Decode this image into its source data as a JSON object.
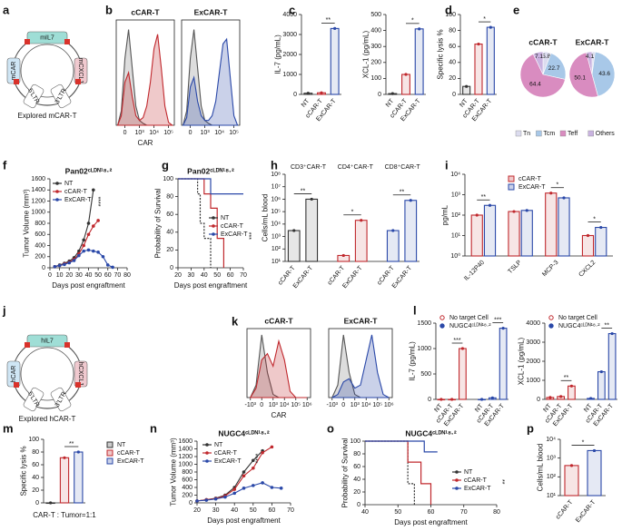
{
  "panel_labels": [
    "a",
    "b",
    "c",
    "d",
    "e",
    "f",
    "g",
    "h",
    "i",
    "j",
    "k",
    "l",
    "m",
    "n",
    "o",
    "p"
  ],
  "plasmids": [
    {
      "title": "Explored mCAR-T",
      "segments": [
        "mIL7",
        "mCAR",
        "mCXCL1",
        "3'LTR",
        "5'LTR"
      ]
    },
    {
      "title": "Explored hCAR-T",
      "segments": [
        "hIL7",
        "hCAR",
        "hCXCL1",
        "3'LTR",
        "5'LTR"
      ]
    }
  ],
  "chart_data": [
    {
      "type": "density",
      "title": "cCAR-T",
      "title_color": "#c0282d",
      "xlabel": "CAR",
      "x": [
        -0.5,
        -0.25,
        0,
        0.25,
        0.5,
        0.75,
        1,
        1.25,
        1.5,
        1.75,
        2,
        2.25,
        2.5,
        2.75,
        3,
        3.25
      ],
      "xlim": [
        -0.6,
        3.4
      ],
      "xticks": [
        {
          "value": 0,
          "label": "0"
        },
        {
          "value": 1,
          "label": "10³"
        },
        {
          "value": 2,
          "label": "10⁴"
        },
        {
          "value": 3,
          "label": "10⁵"
        }
      ],
      "ylim": [
        0,
        110
      ],
      "series": [
        {
          "color": "#555555",
          "values": [
            0,
            15,
            70,
            100,
            60,
            20,
            5,
            2,
            0,
            0,
            0,
            0,
            0,
            0,
            0,
            0
          ]
        },
        {
          "color": "#c0282d",
          "values": [
            0,
            10,
            45,
            55,
            30,
            10,
            5,
            8,
            20,
            45,
            80,
            95,
            60,
            20,
            3,
            0
          ]
        }
      ]
    },
    {
      "type": "density",
      "title": "ExCAR-T",
      "title_color": "#2a48a8",
      "x": [
        -0.5,
        -0.25,
        0,
        0.25,
        0.5,
        0.75,
        1,
        1.25,
        1.5,
        1.75,
        2,
        2.25,
        2.5,
        2.75,
        3,
        3.25
      ],
      "xlim": [
        -0.6,
        3.4
      ],
      "xticks": [
        {
          "value": 0,
          "label": "0"
        },
        {
          "value": 1,
          "label": "10³"
        },
        {
          "value": 2,
          "label": "10⁴"
        },
        {
          "value": 3,
          "label": "10⁵"
        }
      ],
      "ylim": [
        0,
        110
      ],
      "series": [
        {
          "color": "#555555",
          "values": [
            0,
            15,
            70,
            100,
            60,
            20,
            5,
            2,
            0,
            0,
            0,
            0,
            0,
            0,
            0,
            0
          ]
        },
        {
          "color": "#2a48a8",
          "values": [
            0,
            8,
            40,
            50,
            25,
            10,
            5,
            5,
            10,
            25,
            55,
            85,
            90,
            50,
            10,
            0
          ]
        }
      ]
    },
    {
      "type": "bar",
      "ylabel": "IL-7 (pg/mL)",
      "categories": [
        "NT",
        "cCAR-T",
        "ExCAR-T"
      ],
      "values": [
        60,
        80,
        3300
      ],
      "colors": [
        "#333333",
        "#c0282d",
        "#2a48a8"
      ],
      "ylim": [
        0,
        4000
      ],
      "yticks": [
        0,
        1000,
        2000,
        3000,
        4000
      ],
      "significance": [
        "**"
      ]
    },
    {
      "type": "bar",
      "ylabel": "XCL-1 (pg/mL)",
      "categories": [
        "NT",
        "cCAR-T",
        "ExCAR-T"
      ],
      "values": [
        5,
        125,
        410
      ],
      "colors": [
        "#333333",
        "#c0282d",
        "#2a48a8"
      ],
      "ylim": [
        0,
        500
      ],
      "yticks": [
        0,
        100,
        200,
        300,
        400,
        500
      ],
      "significance": [
        "*"
      ]
    },
    {
      "type": "bar",
      "ylabel": "Specific lysis %",
      "categories": [
        "NT",
        "cCAR-T",
        "ExCAR-T"
      ],
      "values": [
        10,
        63,
        84
      ],
      "colors": [
        "#333333",
        "#c0282d",
        "#2a48a8"
      ],
      "ylim": [
        0,
        100
      ],
      "yticks": [
        0,
        20,
        40,
        60,
        80,
        100
      ],
      "significance": [
        "*"
      ]
    },
    {
      "type": "pie",
      "categories": [
        "Tn",
        "Tcm",
        "Teff",
        "Others"
      ],
      "colors": [
        "#dcdcef",
        "#a8c8e8",
        "#d98cc0",
        "#c9b3e0"
      ],
      "series": [
        {
          "name": "cCAR-T",
          "color": "#c0282d",
          "values": [
            5.8,
            22.7,
            64.4,
            7.1
          ]
        },
        {
          "name": "ExCAR-T",
          "color": "#2a48a8",
          "values": [
            2.2,
            43.6,
            50.1,
            4.1
          ]
        }
      ]
    },
    {
      "type": "line",
      "title": "Pan02ᶜᴸᴰᴺ¹⁸·²",
      "ylabel": "Tumor Volume (mm³)",
      "xlabel": "Days post engraftment",
      "x": [
        5,
        10,
        15,
        20,
        25,
        30,
        35,
        40,
        45,
        50,
        55,
        60,
        65
      ],
      "xlim": [
        0,
        80
      ],
      "xticks": [
        0,
        10,
        20,
        30,
        40,
        50,
        60,
        70,
        80
      ],
      "ylim": [
        0,
        1600
      ],
      "yticks": [
        0,
        200,
        400,
        600,
        800,
        1000,
        1200,
        1400,
        1600
      ],
      "series": [
        {
          "name": "NT",
          "color": "#333333",
          "values": [
            20,
            50,
            80,
            120,
            180,
            300,
            500,
            800,
            1400,
            null,
            null,
            null,
            null
          ]
        },
        {
          "name": "cCAR-T",
          "color": "#c0282d",
          "values": [
            20,
            40,
            70,
            100,
            150,
            250,
            400,
            600,
            750,
            850,
            null,
            null,
            null
          ]
        },
        {
          "name": "ExCAR-T",
          "color": "#2a48a8",
          "values": [
            20,
            40,
            60,
            90,
            130,
            220,
            300,
            320,
            300,
            280,
            200,
            50,
            10
          ]
        }
      ],
      "significance": [
        "****"
      ]
    },
    {
      "type": "survival",
      "title": "Pan02ᶜᴸᴰᴺ¹⁸·²",
      "ylabel": "Probability of Survival",
      "xlabel": "Days post engraftment",
      "xlim": [
        20,
        70
      ],
      "xticks": [
        20,
        30,
        40,
        50,
        60,
        70
      ],
      "ylim": [
        0,
        100
      ],
      "yticks": [
        0,
        20,
        40,
        60,
        80,
        100
      ],
      "series": [
        {
          "name": "NT",
          "color": "#333333",
          "x": [
            20,
            35,
            37,
            40,
            45
          ],
          "values": [
            100,
            83,
            50,
            33,
            0
          ]
        },
        {
          "name": "cCAR-T",
          "color": "#c0282d",
          "x": [
            20,
            40,
            45,
            50,
            55
          ],
          "values": [
            100,
            83,
            67,
            33,
            0
          ]
        },
        {
          "name": "ExCAR-T",
          "color": "#2a48a8",
          "x": [
            20,
            45,
            70
          ],
          "values": [
            100,
            83,
            83
          ]
        }
      ],
      "significance": [
        "***"
      ]
    },
    {
      "type": "bar",
      "ylabel": "Cells/mL blood",
      "log": true,
      "categories": [
        "cCAR-T",
        "ExCAR-T"
      ],
      "ylim": [
        10,
        100000000
      ],
      "yticks": [
        {
          "value": 10,
          "label": "10¹"
        },
        {
          "value": 100,
          "label": "10²"
        },
        {
          "value": 1000,
          "label": "10³"
        },
        {
          "value": 10000,
          "label": "10⁴"
        },
        {
          "value": 100000,
          "label": "10⁵"
        },
        {
          "value": 1000000,
          "label": "10⁶"
        },
        {
          "value": 10000000,
          "label": "10⁷"
        },
        {
          "value": 100000000,
          "label": "10⁸"
        }
      ],
      "series": [
        {
          "name": "CD3⁺CAR-T",
          "color": "#333333",
          "values": [
            3000,
            1000000
          ]
        },
        {
          "name": "CD4⁺CAR-T",
          "color": "#c0282d",
          "values": [
            30,
            20000
          ]
        },
        {
          "name": "CD8⁺CAR-T",
          "color": "#2a48a8",
          "values": [
            3000,
            800000
          ]
        }
      ],
      "significance": [
        "**",
        "*",
        "**"
      ]
    },
    {
      "type": "bar",
      "ylabel": "pg/mL",
      "log": true,
      "categories": [
        "IL-12P40",
        "TSLP",
        "MCP-3",
        "CXCL2"
      ],
      "ylim": [
        1,
        10000
      ],
      "yticks": [
        {
          "value": 1,
          "label": "10⁰"
        },
        {
          "value": 10,
          "label": "10¹"
        },
        {
          "value": 100,
          "label": "10²"
        },
        {
          "value": 1000,
          "label": "10³"
        },
        {
          "value": 10000,
          "label": "10⁴"
        }
      ],
      "series": [
        {
          "name": "cCAR-T",
          "color": "#c0282d",
          "values": [
            100,
            150,
            1200,
            10
          ]
        },
        {
          "name": "ExCAR-T",
          "color": "#2a48a8",
          "values": [
            300,
            170,
            700,
            25
          ]
        }
      ],
      "significance": [
        "**",
        "*",
        "*"
      ]
    },
    {
      "type": "density",
      "title": "cCAR-T",
      "title_color": "#c0282d",
      "xlabel": "CAR",
      "x": [
        -1,
        -0.5,
        0,
        0.5,
        1,
        1.5,
        2,
        2.5,
        3,
        3.5,
        4
      ],
      "xlim": [
        -1.3,
        4.3
      ],
      "xticks": [
        {
          "value": -1,
          "label": "-10³"
        },
        {
          "value": 0,
          "label": "0"
        },
        {
          "value": 1,
          "label": "10³"
        },
        {
          "value": 2,
          "label": "10⁴"
        },
        {
          "value": 3,
          "label": "10⁵"
        },
        {
          "value": 4,
          "label": "10⁶"
        }
      ],
      "ylim": [
        0,
        110
      ],
      "series": [
        {
          "color": "#555555",
          "values": [
            0,
            20,
            100,
            40,
            5,
            0,
            0,
            0,
            0,
            0,
            0
          ]
        },
        {
          "color": "#c0282d",
          "values": [
            0,
            15,
            60,
            70,
            50,
            90,
            60,
            10,
            0,
            0,
            0
          ]
        }
      ]
    },
    {
      "type": "density",
      "title": "ExCAR-T",
      "title_color": "#2a48a8",
      "x": [
        -1,
        -0.5,
        0,
        0.5,
        1,
        1.5,
        2,
        2.5,
        3,
        3.5,
        4
      ],
      "xlim": [
        -1.3,
        4.3
      ],
      "xticks": [
        {
          "value": -1,
          "label": "-10³"
        },
        {
          "value": 0,
          "label": "0"
        },
        {
          "value": 1,
          "label": "10³"
        },
        {
          "value": 2,
          "label": "10⁴"
        },
        {
          "value": 3,
          "label": "10⁵"
        },
        {
          "value": 4,
          "label": "10⁶"
        }
      ],
      "ylim": [
        0,
        110
      ],
      "series": [
        {
          "color": "#555555",
          "values": [
            0,
            20,
            100,
            40,
            5,
            0,
            0,
            0,
            0,
            0,
            0
          ]
        },
        {
          "color": "#2a48a8",
          "values": [
            0,
            5,
            25,
            30,
            15,
            20,
            60,
            100,
            40,
            5,
            0
          ]
        }
      ]
    },
    {
      "type": "bar",
      "ylabel": "IL-7 (pg/mL)",
      "categories": [
        "NT",
        "cCAR-T",
        "ExCAR-T"
      ],
      "ylim": [
        0,
        1500
      ],
      "yticks": [
        0,
        500,
        1000,
        1500
      ],
      "series": [
        {
          "name": "No target Cell",
          "color": "#c0282d",
          "values": [
            0,
            0,
            1000
          ]
        },
        {
          "name": "NUGC4ᶜᴸᴰᴺ¹⁸·²",
          "color": "#2a48a8",
          "values": [
            0,
            30,
            1400
          ]
        }
      ],
      "significance": [
        "***",
        "***"
      ]
    },
    {
      "type": "bar",
      "ylabel": "XCL-1 (pg/mL)",
      "categories": [
        "NT",
        "cCAR-T",
        "ExCAR-T"
      ],
      "ylim": [
        0,
        4000
      ],
      "yticks": [
        0,
        1000,
        2000,
        3000,
        4000
      ],
      "series": [
        {
          "name": "No target Cell",
          "color": "#c0282d",
          "values": [
            100,
            150,
            700
          ]
        },
        {
          "name": "NUGC4ᶜᴸᴰᴺ¹⁸·²",
          "color": "#2a48a8",
          "values": [
            50,
            1450,
            3450
          ]
        }
      ],
      "significance": [
        "**",
        "**"
      ]
    },
    {
      "type": "bar",
      "ylabel": "Specific lysis %",
      "xlabel": "CAR-T : Tumor=1:1",
      "legend": true,
      "categories": [
        "NT",
        "cCAR-T",
        "ExCAR-T"
      ],
      "values": [
        0,
        71,
        80
      ],
      "colors": [
        "#333333",
        "#c0282d",
        "#2a48a8"
      ],
      "ylim": [
        0,
        100
      ],
      "yticks": [
        0,
        20,
        40,
        60,
        80,
        100
      ],
      "significance": [
        "**"
      ]
    },
    {
      "type": "line",
      "title": "NUGC4ᶜᴸᴰᴺ¹⁸·²",
      "ylabel": "Tumor Volume (mm³)",
      "xlabel": "Days post engraftment",
      "x": [
        20,
        25,
        30,
        35,
        40,
        45,
        50,
        55,
        60,
        65
      ],
      "xlim": [
        20,
        70
      ],
      "xticks": [
        20,
        30,
        40,
        50,
        60,
        70
      ],
      "ylim": [
        0,
        1600
      ],
      "yticks": [
        0,
        200,
        400,
        600,
        800,
        1000,
        1200,
        1400,
        1600
      ],
      "series": [
        {
          "name": "NT",
          "color": "#333333",
          "values": [
            50,
            80,
            120,
            200,
            400,
            800,
            1100,
            1350,
            null,
            null
          ]
        },
        {
          "name": "cCAR-T",
          "color": "#c0282d",
          "values": [
            50,
            80,
            110,
            180,
            350,
            700,
            900,
            1300,
            1450,
            null
          ]
        },
        {
          "name": "ExCAR-T",
          "color": "#2a48a8",
          "values": [
            50,
            70,
            100,
            150,
            250,
            380,
            450,
            520,
            400,
            380
          ]
        }
      ],
      "significance": [
        "****"
      ]
    },
    {
      "type": "survival",
      "title": "NUGC4ᶜᴸᴰᴺ¹⁸·²",
      "ylabel": "Probability of Survival",
      "xlabel": "Days post engraftment",
      "xlim": [
        40,
        80
      ],
      "xticks": [
        40,
        50,
        60,
        70,
        80
      ],
      "ylim": [
        0,
        100
      ],
      "yticks": [
        0,
        20,
        40,
        60,
        80,
        100
      ],
      "series": [
        {
          "name": "NT",
          "color": "#333333",
          "x": [
            40,
            53,
            55
          ],
          "values": [
            100,
            33,
            0
          ]
        },
        {
          "name": "cCAR-T",
          "color": "#c0282d",
          "x": [
            40,
            53,
            57,
            60
          ],
          "values": [
            100,
            67,
            33,
            0
          ]
        },
        {
          "name": "ExCAR-T",
          "color": "#2a48a8",
          "x": [
            40,
            58,
            62
          ],
          "values": [
            100,
            83,
            83
          ]
        }
      ],
      "significance": [
        "**"
      ]
    },
    {
      "type": "bar",
      "ylabel": "Cells/mL blood",
      "log": true,
      "categories": [
        "cCAR-T",
        "ExCAR-T"
      ],
      "values": [
        400,
        2500
      ],
      "colors": [
        "#c0282d",
        "#2a48a8"
      ],
      "ylim": [
        10,
        10000
      ],
      "yticks": [
        {
          "value": 10,
          "label": "10¹"
        },
        {
          "value": 100,
          "label": "10²"
        },
        {
          "value": 1000,
          "label": "10³"
        },
        {
          "value": 10000,
          "label": "10⁴"
        }
      ],
      "significance": [
        "*"
      ]
    }
  ]
}
